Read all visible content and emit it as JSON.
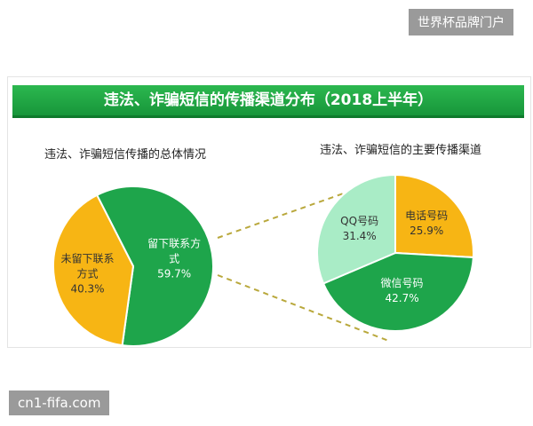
{
  "title": "违法、诈骗短信的传播渠道分布（2018上半年）",
  "watermarks": [
    "世界杯品牌门户",
    "cn1-fifa.com"
  ],
  "chart_data": [
    {
      "type": "pie",
      "title": "违法、诈骗短信传播的总体情况",
      "categories": [
        "留下联系方式",
        "未留下联系方式"
      ],
      "values": [
        59.7,
        40.3
      ],
      "value_labels": [
        "59.7%",
        "40.3%"
      ],
      "colors": [
        "#1ea54b",
        "#f7b514"
      ]
    },
    {
      "type": "pie",
      "title": "违法、诈骗短信的主要传播渠道",
      "categories": [
        "电话号码",
        "微信号码",
        "QQ号码"
      ],
      "values": [
        25.9,
        42.7,
        31.4
      ],
      "value_labels": [
        "25.9%",
        "42.7%",
        "31.4%"
      ],
      "colors": [
        "#f7b514",
        "#1ea54b",
        "#a9ecc6"
      ]
    }
  ]
}
